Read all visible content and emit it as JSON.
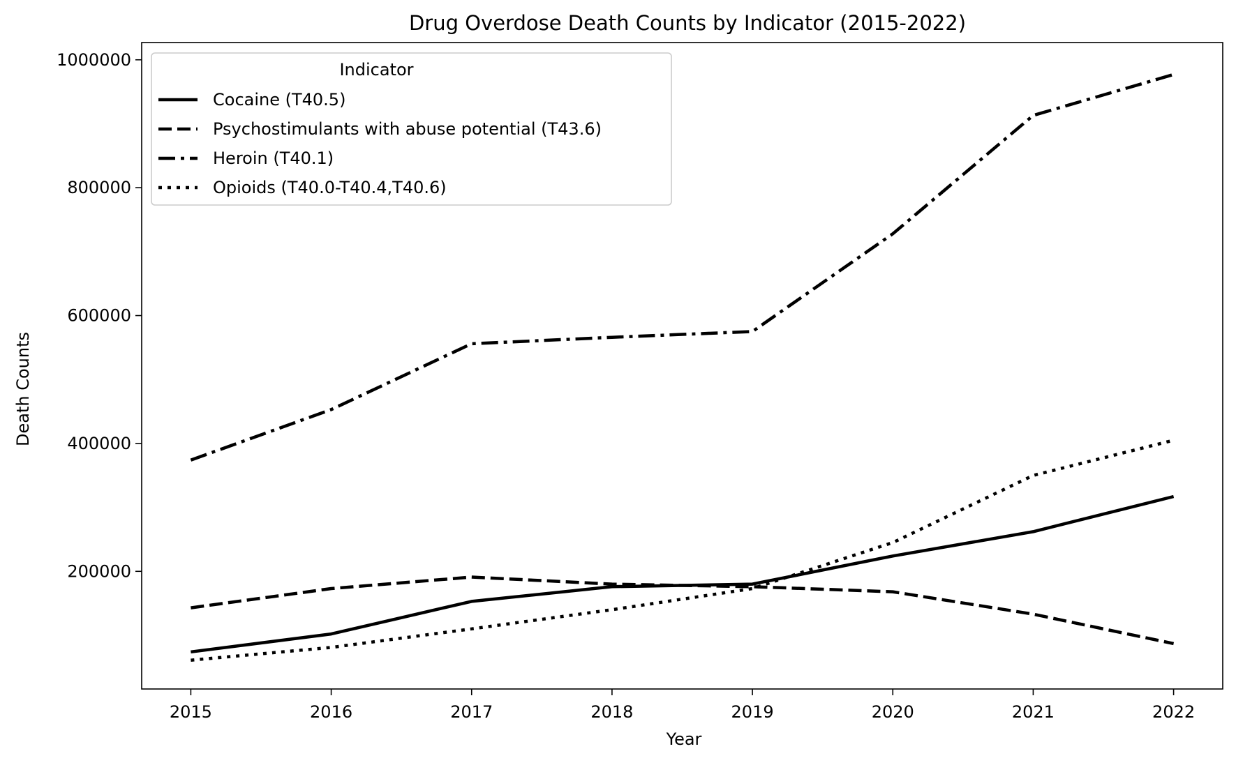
{
  "chart_data": {
    "type": "line",
    "title": "Drug Overdose Death Counts by Indicator (2015-2022)",
    "xlabel": "Year",
    "ylabel": "Death Counts",
    "x": [
      2015,
      2016,
      2017,
      2018,
      2019,
      2020,
      2021,
      2022
    ],
    "x_tick_labels": [
      "2015",
      "2016",
      "2017",
      "2018",
      "2019",
      "2020",
      "2021",
      "2022"
    ],
    "y_ticks": [
      200000,
      400000,
      600000,
      800000,
      1000000
    ],
    "y_tick_labels": [
      "200000",
      "400000",
      "600000",
      "800000",
      "1000000"
    ],
    "xlim": [
      2014.65,
      2022.35
    ],
    "ylim": [
      16000,
      1027000
    ],
    "grid": false,
    "legend": {
      "title": "Indicator",
      "placement": "top-left"
    },
    "series": [
      {
        "name": "Cocaine (T40.5)",
        "line_style": "solid",
        "color": "#000000",
        "values": [
          74000,
          102000,
          153000,
          176000,
          180000,
          224000,
          262000,
          317000
        ]
      },
      {
        "name": "Psychostimulants with abuse potential (T43.6)",
        "line_style": "dashed",
        "color": "#000000",
        "values": [
          143000,
          173000,
          191000,
          180000,
          176000,
          168000,
          133000,
          87000
        ]
      },
      {
        "name": "Heroin (T40.1)",
        "line_style": "dashdot",
        "color": "#000000",
        "values": [
          374000,
          453000,
          556000,
          566000,
          575000,
          728000,
          913000,
          977000
        ]
      },
      {
        "name": "Opioids (T40.0-T40.4,T40.6)",
        "line_style": "dotted",
        "color": "#000000",
        "values": [
          61000,
          81000,
          110000,
          140000,
          173000,
          245000,
          350000,
          405000
        ]
      }
    ]
  }
}
